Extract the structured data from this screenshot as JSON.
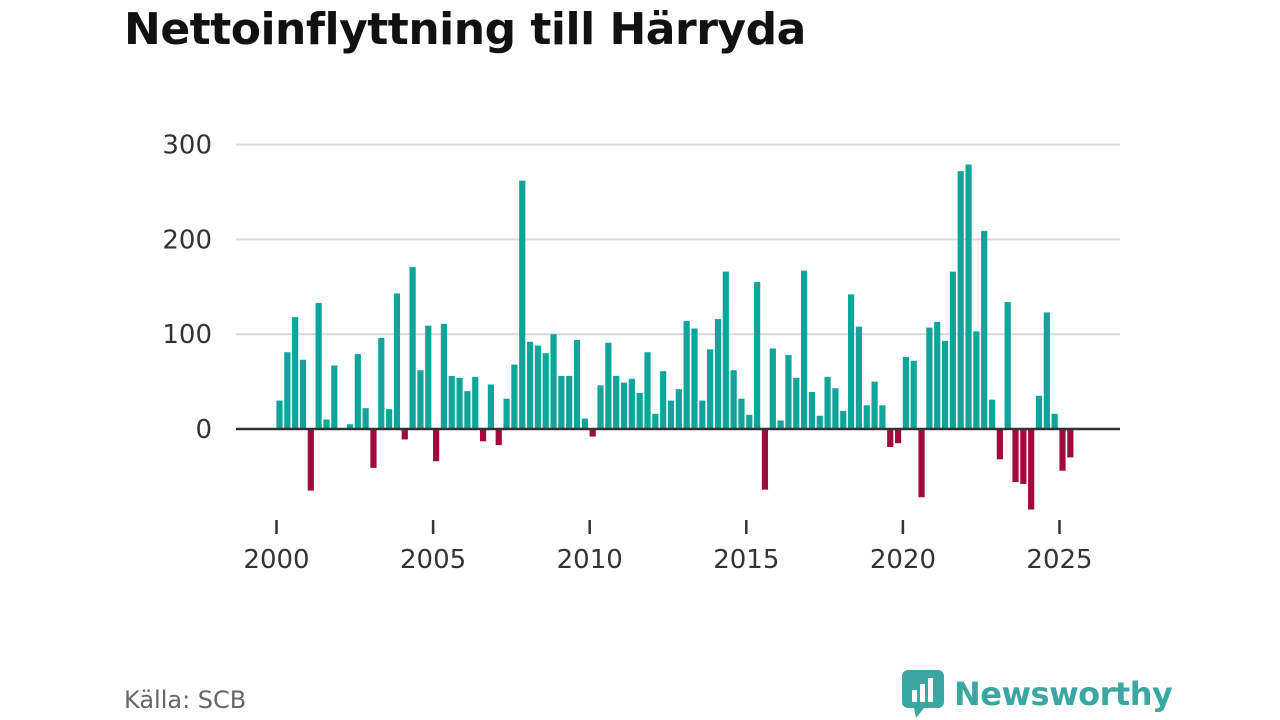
{
  "title": "Nettoinflyttning till Härryda",
  "source": "Källa: SCB",
  "brand": "Newsworthy",
  "colors": {
    "positive": "#10a59b",
    "negative": "#a00b3c",
    "grid": "#d9d9d9",
    "axis": "#333333",
    "brand": "#3ba7a2"
  },
  "chart_data": {
    "type": "bar",
    "title": "Nettoinflyttning till Härryda",
    "frequency": "quarterly",
    "start_period": "2000 Q1",
    "xlabel": "",
    "ylabel": "",
    "ylim": [
      -90,
      310
    ],
    "yticks": [
      0,
      100,
      200,
      300
    ],
    "xticks": [
      "2000",
      "2005",
      "2010",
      "2015",
      "2020",
      "2025"
    ],
    "values": [
      30,
      81,
      118,
      73,
      -65,
      133,
      10,
      67,
      0,
      5,
      79,
      22,
      -41,
      96,
      21,
      143,
      -11,
      171,
      62,
      109,
      -34,
      111,
      56,
      54,
      40,
      55,
      -13,
      47,
      -17,
      32,
      68,
      262,
      92,
      88,
      80,
      100,
      56,
      56,
      94,
      11,
      -8,
      46,
      91,
      56,
      49,
      53,
      38,
      81,
      16,
      61,
      30,
      42,
      114,
      106,
      30,
      84,
      116,
      166,
      62,
      32,
      15,
      155,
      -64,
      85,
      9,
      78,
      54,
      167,
      39,
      14,
      55,
      43,
      19,
      142,
      108,
      25,
      50,
      25,
      -19,
      -15,
      76,
      72,
      -72,
      107,
      113,
      93,
      166,
      272,
      279,
      103,
      209,
      31,
      -32,
      134,
      -56,
      -58,
      -85,
      35,
      123,
      16,
      -44,
      -30
    ]
  }
}
